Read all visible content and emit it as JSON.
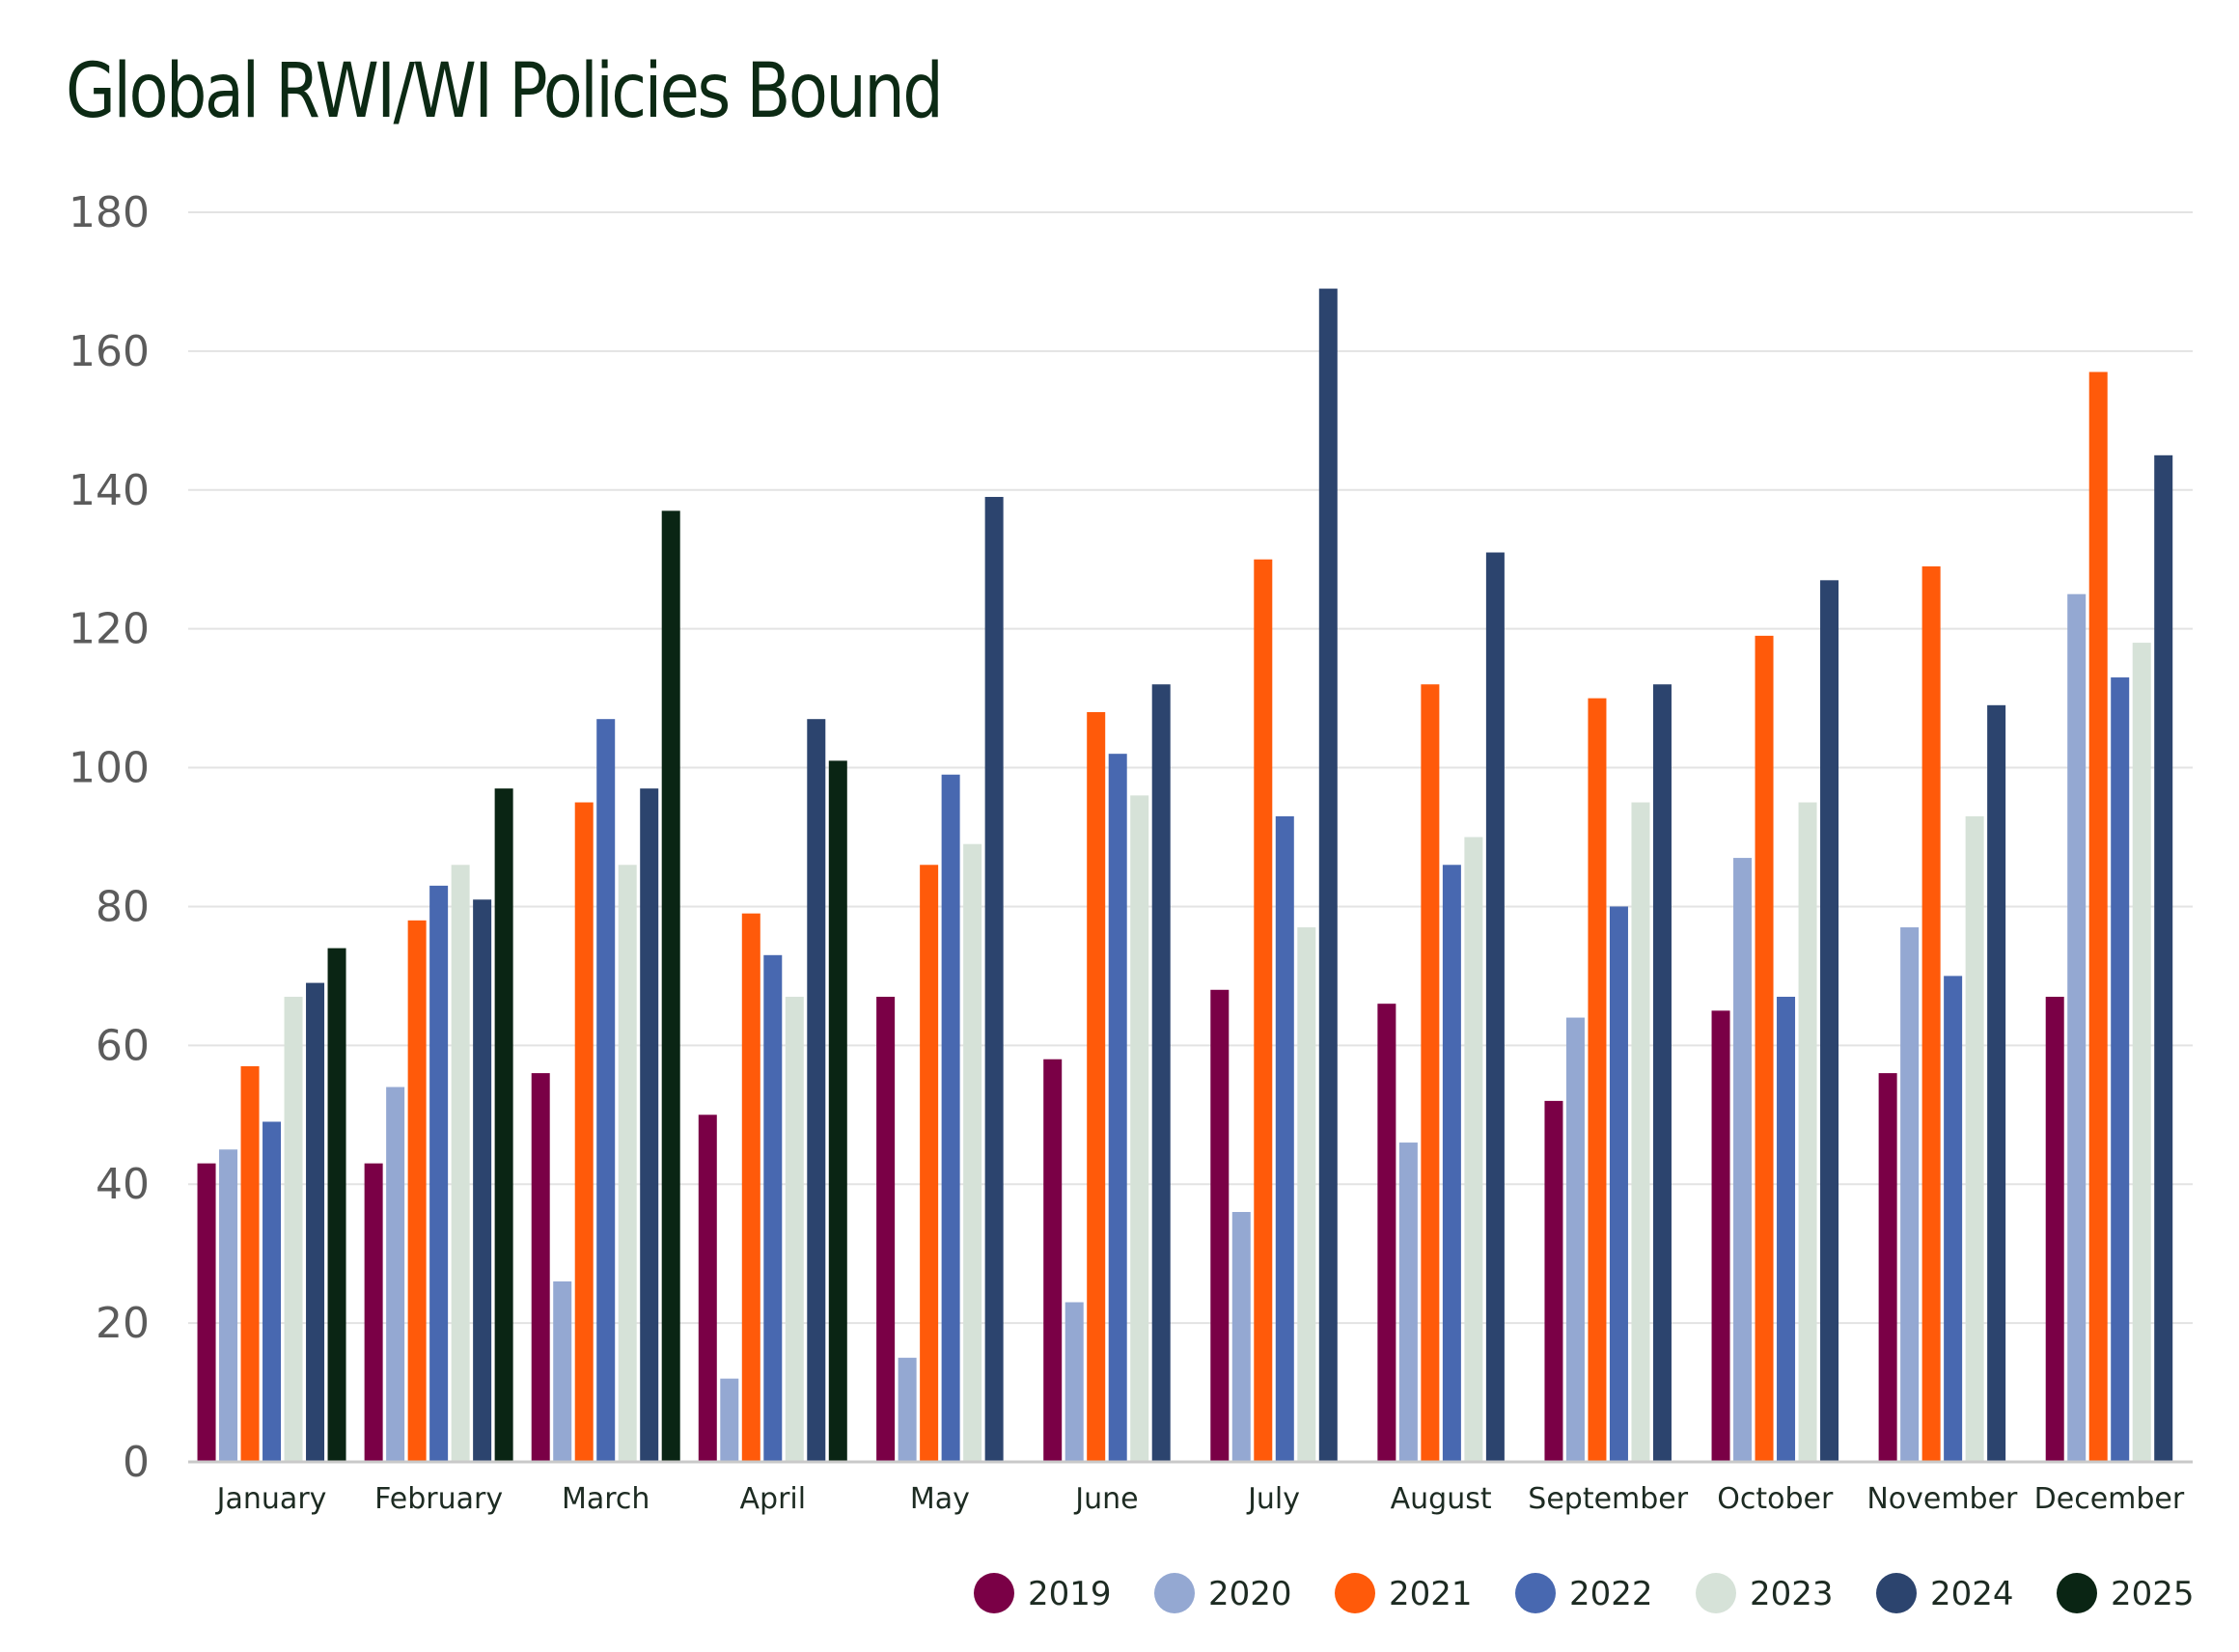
{
  "chart_data": {
    "type": "bar",
    "title": "Global RWI/WI Policies Bound",
    "xlabel": "",
    "ylabel": "",
    "ylim": [
      0,
      180
    ],
    "yticks": [
      0,
      20,
      40,
      60,
      80,
      100,
      120,
      140,
      160,
      180
    ],
    "grid": true,
    "legend_position": "bottom-right",
    "categories": [
      "January",
      "February",
      "March",
      "April",
      "May",
      "June",
      "July",
      "August",
      "September",
      "October",
      "November",
      "December"
    ],
    "series": [
      {
        "name": "2019",
        "color": "#7a0046",
        "values": [
          43,
          43,
          56,
          50,
          67,
          58,
          68,
          66,
          52,
          65,
          56,
          67
        ]
      },
      {
        "name": "2020",
        "color": "#94a8d2",
        "values": [
          45,
          54,
          26,
          12,
          15,
          23,
          36,
          46,
          64,
          87,
          77,
          125
        ]
      },
      {
        "name": "2021",
        "color": "#ff5a0a",
        "values": [
          57,
          78,
          95,
          79,
          86,
          108,
          130,
          112,
          110,
          119,
          129,
          157
        ]
      },
      {
        "name": "2022",
        "color": "#4868b0",
        "values": [
          49,
          83,
          107,
          73,
          99,
          102,
          93,
          86,
          80,
          67,
          70,
          113
        ]
      },
      {
        "name": "2023",
        "color": "#d6e2d8",
        "values": [
          67,
          86,
          86,
          67,
          89,
          96,
          77,
          90,
          95,
          95,
          93,
          118
        ]
      },
      {
        "name": "2024",
        "color": "#2c446e",
        "values": [
          69,
          81,
          97,
          107,
          139,
          112,
          169,
          131,
          112,
          127,
          109,
          145
        ]
      },
      {
        "name": "2025",
        "color": "#0a2514",
        "values": [
          74,
          97,
          137,
          101,
          null,
          null,
          null,
          null,
          null,
          null,
          null,
          null
        ]
      }
    ]
  }
}
